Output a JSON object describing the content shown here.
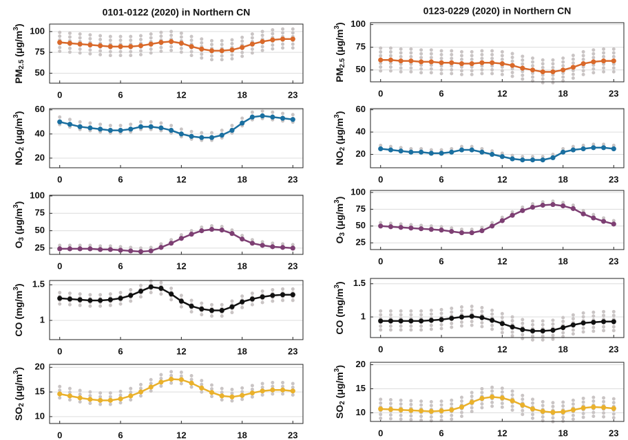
{
  "chart_data": [
    {
      "type": "line",
      "title": "0101-0122 (2020) in Northern CN",
      "ylabel": [
        {
          "text": "PM"
        },
        {
          "text": "2.5",
          "pos": "sub"
        },
        {
          "text": " (μg/m"
        },
        {
          "text": "3",
          "pos": "sup"
        },
        {
          "text": ")"
        }
      ],
      "color": "#d9692a",
      "x": [
        0,
        1,
        2,
        3,
        4,
        5,
        6,
        7,
        8,
        9,
        10,
        11,
        12,
        13,
        14,
        15,
        16,
        17,
        18,
        19,
        20,
        21,
        22,
        23
      ],
      "values": [
        87,
        86,
        85,
        84,
        83,
        82,
        82,
        82,
        83,
        85,
        87,
        88,
        86,
        82,
        79,
        77,
        77,
        78,
        81,
        85,
        88,
        90,
        91,
        91
      ],
      "spread": 12,
      "xlim": [
        -1,
        24
      ],
      "xticks": [
        0,
        6,
        12,
        18,
        23
      ],
      "ylim": [
        38,
        109
      ],
      "yticks": [
        50,
        75,
        100
      ],
      "grid": true
    },
    {
      "type": "line",
      "ylabel": [
        {
          "text": "NO"
        },
        {
          "text": "2",
          "pos": "sub"
        },
        {
          "text": " (μg/m"
        },
        {
          "text": "3",
          "pos": "sup"
        },
        {
          "text": ")"
        }
      ],
      "color": "#1a6fa0",
      "x": [
        0,
        1,
        2,
        3,
        4,
        5,
        6,
        7,
        8,
        9,
        10,
        11,
        12,
        13,
        14,
        15,
        16,
        17,
        18,
        19,
        20,
        21,
        22,
        23
      ],
      "values": [
        50,
        48,
        46,
        45,
        44,
        43,
        43,
        44,
        46,
        46,
        45,
        43,
        40,
        38,
        37,
        37,
        39,
        43,
        49,
        54,
        55,
        54,
        53,
        52
      ],
      "spread": 4,
      "xlim": [
        -1,
        24
      ],
      "xticks": [
        0,
        6,
        12,
        18,
        23
      ],
      "ylim": [
        12,
        61
      ],
      "yticks": [
        20,
        40,
        60
      ],
      "grid": true
    },
    {
      "type": "line",
      "ylabel": [
        {
          "text": "O"
        },
        {
          "text": "3",
          "pos": "sub"
        },
        {
          "text": " (μg/m"
        },
        {
          "text": "3",
          "pos": "sup"
        },
        {
          "text": ")"
        }
      ],
      "color": "#7d3f73",
      "x": [
        0,
        1,
        2,
        3,
        4,
        5,
        6,
        7,
        8,
        9,
        10,
        11,
        12,
        13,
        14,
        15,
        16,
        17,
        18,
        19,
        20,
        21,
        22,
        23
      ],
      "values": [
        24,
        24,
        24,
        24,
        23,
        23,
        22,
        21,
        20,
        21,
        26,
        32,
        39,
        45,
        50,
        52,
        51,
        46,
        38,
        32,
        29,
        27,
        26,
        25
      ],
      "spread": 5,
      "xlim": [
        -1,
        24
      ],
      "xticks": [
        0,
        6,
        12,
        18,
        23
      ],
      "ylim": [
        16,
        101
      ],
      "yticks": [
        25,
        50,
        75,
        100
      ],
      "grid": true
    },
    {
      "type": "line",
      "ylabel": [
        {
          "text": "CO (mg/m"
        },
        {
          "text": "3",
          "pos": "sup"
        },
        {
          "text": ")"
        }
      ],
      "color": "#111111",
      "x": [
        0,
        1,
        2,
        3,
        4,
        5,
        6,
        7,
        8,
        9,
        10,
        11,
        12,
        13,
        14,
        15,
        16,
        17,
        18,
        19,
        20,
        21,
        22,
        23
      ],
      "values": [
        1.31,
        1.3,
        1.29,
        1.28,
        1.28,
        1.29,
        1.31,
        1.35,
        1.41,
        1.47,
        1.45,
        1.37,
        1.27,
        1.2,
        1.16,
        1.14,
        1.14,
        1.19,
        1.26,
        1.3,
        1.33,
        1.35,
        1.36,
        1.36
      ],
      "spread": 0.08,
      "xlim": [
        -1,
        24
      ],
      "xticks": [
        0,
        6,
        12,
        18,
        23
      ],
      "ylim": [
        0.73,
        1.56
      ],
      "yticks": [
        1,
        1.5
      ],
      "grid": true
    },
    {
      "type": "line",
      "ylabel": [
        {
          "text": "SO"
        },
        {
          "text": "2",
          "pos": "sub"
        },
        {
          "text": " (μg/m"
        },
        {
          "text": "3",
          "pos": "sup"
        },
        {
          "text": ")"
        }
      ],
      "color": "#eab12b",
      "x": [
        0,
        1,
        2,
        3,
        4,
        5,
        6,
        7,
        8,
        9,
        10,
        11,
        12,
        13,
        14,
        15,
        16,
        17,
        18,
        19,
        20,
        21,
        22,
        23
      ],
      "values": [
        14.6,
        14.2,
        13.8,
        13.5,
        13.3,
        13.3,
        13.6,
        14.2,
        15,
        16,
        17,
        17.6,
        17.5,
        16.8,
        15.8,
        14.9,
        14.2,
        14,
        14.3,
        14.8,
        15.2,
        15.4,
        15.4,
        15.2
      ],
      "spread": 1.5,
      "xlim": [
        -1,
        24
      ],
      "xticks": [
        0,
        6,
        12,
        18,
        23
      ],
      "ylim": [
        8.6,
        20.6
      ],
      "yticks": [
        10,
        15,
        20
      ],
      "grid": true
    },
    {
      "type": "line",
      "title": "0123-0229 (2020) in Northern CN",
      "ylabel": [
        {
          "text": "PM"
        },
        {
          "text": "2.5",
          "pos": "sub"
        },
        {
          "text": " (μg/m"
        },
        {
          "text": "3",
          "pos": "sup"
        },
        {
          "text": ")"
        }
      ],
      "color": "#d9692a",
      "x": [
        0,
        1,
        2,
        3,
        4,
        5,
        6,
        7,
        8,
        9,
        10,
        11,
        12,
        13,
        14,
        15,
        16,
        17,
        18,
        19,
        20,
        21,
        22,
        23
      ],
      "values": [
        61,
        61,
        60,
        60,
        59,
        59,
        58,
        58,
        57,
        57,
        58,
        58,
        57,
        55,
        52,
        50,
        48,
        48,
        50,
        53,
        57,
        59,
        60,
        60
      ],
      "spread": 13,
      "xlim": [
        -1,
        24
      ],
      "xticks": [
        0,
        6,
        12,
        18,
        23
      ],
      "ylim": [
        37,
        102
      ],
      "yticks": [
        50,
        75,
        100
      ],
      "grid": true
    },
    {
      "type": "line",
      "ylabel": [
        {
          "text": "NO"
        },
        {
          "text": "2",
          "pos": "sub"
        },
        {
          "text": " (μg/m"
        },
        {
          "text": "3",
          "pos": "sup"
        },
        {
          "text": ")"
        }
      ],
      "color": "#1a6fa0",
      "x": [
        0,
        1,
        2,
        3,
        4,
        5,
        6,
        7,
        8,
        9,
        10,
        11,
        12,
        13,
        14,
        15,
        16,
        17,
        18,
        19,
        20,
        21,
        22,
        23
      ],
      "values": [
        25,
        24,
        23,
        22,
        22,
        21,
        21,
        22,
        24,
        24,
        22,
        20,
        18,
        16,
        15,
        15,
        15,
        17,
        22,
        24,
        25,
        26,
        26,
        25
      ],
      "spread": 3,
      "xlim": [
        -1,
        24
      ],
      "xticks": [
        0,
        6,
        12,
        18,
        23
      ],
      "ylim": [
        8,
        61
      ],
      "yticks": [
        20,
        40,
        60
      ],
      "grid": true
    },
    {
      "type": "line",
      "ylabel": [
        {
          "text": "O"
        },
        {
          "text": "3",
          "pos": "sub"
        },
        {
          "text": " (μg/m"
        },
        {
          "text": "3",
          "pos": "sup"
        },
        {
          "text": ")"
        }
      ],
      "color": "#7d3f73",
      "x": [
        0,
        1,
        2,
        3,
        4,
        5,
        6,
        7,
        8,
        9,
        10,
        11,
        12,
        13,
        14,
        15,
        16,
        17,
        18,
        19,
        20,
        21,
        22,
        23
      ],
      "values": [
        50,
        49,
        48,
        47,
        46,
        45,
        44,
        42,
        40,
        40,
        43,
        50,
        58,
        66,
        73,
        78,
        81,
        82,
        80,
        76,
        68,
        62,
        57,
        53
      ],
      "spread": 5,
      "xlim": [
        -1,
        24
      ],
      "xticks": [
        0,
        6,
        12,
        18,
        23
      ],
      "ylim": [
        15,
        103
      ],
      "yticks": [
        25,
        50,
        75,
        100
      ],
      "grid": true
    },
    {
      "type": "line",
      "ylabel": [
        {
          "text": "CO (mg/m"
        },
        {
          "text": "3",
          "pos": "sup"
        },
        {
          "text": ")"
        }
      ],
      "color": "#111111",
      "x": [
        0,
        1,
        2,
        3,
        4,
        5,
        6,
        7,
        8,
        9,
        10,
        11,
        12,
        13,
        14,
        15,
        16,
        17,
        18,
        19,
        20,
        21,
        22,
        23
      ],
      "values": [
        0.94,
        0.94,
        0.94,
        0.94,
        0.94,
        0.95,
        0.96,
        0.98,
        1,
        1.01,
        0.99,
        0.95,
        0.9,
        0.85,
        0.81,
        0.79,
        0.79,
        0.8,
        0.84,
        0.88,
        0.91,
        0.92,
        0.93,
        0.93
      ],
      "spread": 0.15,
      "xlim": [
        -1,
        24
      ],
      "xticks": [
        0,
        6,
        12,
        18,
        23
      ],
      "ylim": [
        0.69,
        1.58
      ],
      "yticks": [
        1,
        1.5
      ],
      "grid": true
    },
    {
      "type": "line",
      "ylabel": [
        {
          "text": "SO"
        },
        {
          "text": "2",
          "pos": "sub"
        },
        {
          "text": " (μg/m"
        },
        {
          "text": "3",
          "pos": "sup"
        },
        {
          "text": ")"
        }
      ],
      "color": "#eab12b",
      "x": [
        0,
        1,
        2,
        3,
        4,
        5,
        6,
        7,
        8,
        9,
        10,
        11,
        12,
        13,
        14,
        15,
        16,
        17,
        18,
        19,
        20,
        21,
        22,
        23
      ],
      "values": [
        10.8,
        10.7,
        10.6,
        10.5,
        10.4,
        10.3,
        10.4,
        10.6,
        11.2,
        12.2,
        13,
        13.3,
        13.1,
        12.5,
        11.6,
        10.8,
        10.3,
        10.1,
        10.2,
        10.6,
        11,
        11.2,
        11.1,
        10.9
      ],
      "spread": 2,
      "xlim": [
        -1,
        24
      ],
      "xticks": [
        0,
        6,
        12,
        18,
        23
      ],
      "ylim": [
        8.2,
        20.5
      ],
      "yticks": [
        10,
        15,
        20
      ],
      "grid": true
    }
  ]
}
